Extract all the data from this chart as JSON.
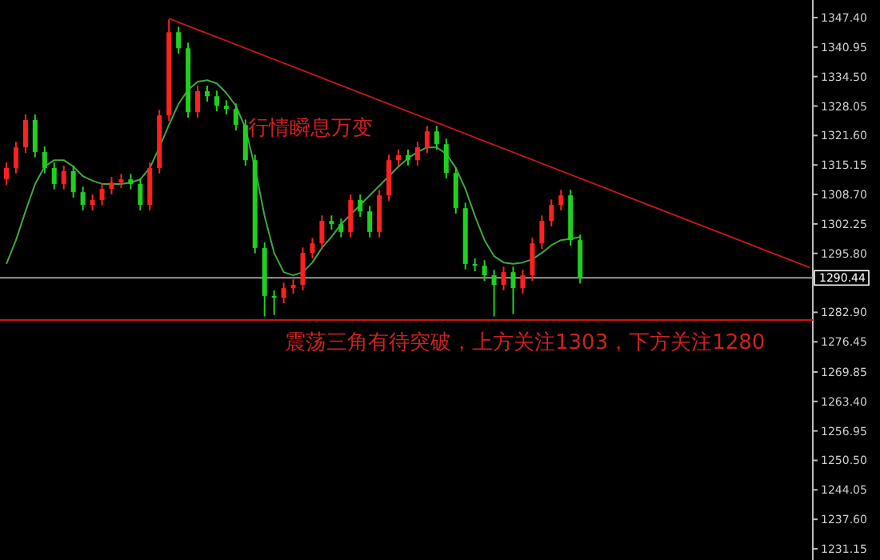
{
  "chart_data": {
    "type": "candlestick",
    "categories": [
      null,
      null,
      null,
      null,
      null,
      null,
      null,
      null,
      null,
      null,
      null,
      null,
      null,
      null,
      null,
      null,
      null,
      null,
      null,
      null,
      null,
      null,
      null,
      null,
      null,
      null,
      null,
      null,
      null,
      null,
      null,
      null,
      null,
      null,
      null,
      null,
      null,
      null,
      null,
      null,
      null,
      null,
      null,
      null,
      null,
      null,
      null,
      null,
      null,
      null,
      null,
      null,
      null,
      null,
      null,
      null,
      null,
      null,
      null,
      null,
      null,
      null,
      null,
      null,
      null,
      null,
      null,
      null,
      null,
      null,
      null,
      null,
      null,
      null,
      null,
      null,
      null,
      null,
      null,
      null,
      null,
      null,
      null,
      null,
      null
    ],
    "ohlc": [
      [
        1312.0,
        1315.7,
        1310.8,
        1314.5
      ],
      [
        1314.5,
        1320.2,
        1313.3,
        1319.0
      ],
      [
        1319.0,
        1326.2,
        1317.8,
        1325.0
      ],
      [
        1325.0,
        1326.2,
        1316.8,
        1318.0
      ],
      [
        1318.0,
        1319.2,
        1313.3,
        1314.5
      ],
      [
        1314.5,
        1315.7,
        1309.8,
        1311.0
      ],
      [
        1311.0,
        1315.0,
        1309.8,
        1313.8
      ],
      [
        1313.8,
        1315.0,
        1308.0,
        1309.2
      ],
      [
        1309.2,
        1310.4,
        1305.2,
        1306.4
      ],
      [
        1306.4,
        1308.7,
        1305.2,
        1307.5
      ],
      [
        1307.5,
        1311.1,
        1306.3,
        1309.9
      ],
      [
        1309.9,
        1312.5,
        1308.7,
        1311.3
      ],
      [
        1311.3,
        1313.2,
        1310.1,
        1312.0
      ],
      [
        1312.0,
        1313.2,
        1309.8,
        1311.0
      ],
      [
        1311.0,
        1312.2,
        1305.2,
        1306.4
      ],
      [
        1306.4,
        1315.7,
        1305.2,
        1314.5
      ],
      [
        1314.5,
        1327.2,
        1313.3,
        1326.0
      ],
      [
        1326.0,
        1347.0,
        1324.8,
        1344.2
      ],
      [
        1344.2,
        1345.4,
        1339.5,
        1340.7
      ],
      [
        1340.7,
        1341.9,
        1325.5,
        1326.7
      ],
      [
        1326.7,
        1332.5,
        1325.5,
        1331.3
      ],
      [
        1331.3,
        1332.5,
        1329.0,
        1330.2
      ],
      [
        1330.2,
        1331.4,
        1326.9,
        1328.1
      ],
      [
        1328.1,
        1329.3,
        1326.2,
        1327.4
      ],
      [
        1327.4,
        1328.6,
        1322.7,
        1323.9
      ],
      [
        1323.9,
        1325.1,
        1315.0,
        1316.2
      ],
      [
        1316.2,
        1317.4,
        1295.8,
        1297.0
      ],
      [
        1297.0,
        1298.2,
        1282.0,
        1286.5
      ],
      [
        1286.5,
        1287.7,
        1282.3,
        1286.1
      ],
      [
        1286.1,
        1289.4,
        1284.9,
        1288.2
      ],
      [
        1288.2,
        1290.1,
        1287.0,
        1288.9
      ],
      [
        1288.9,
        1297.1,
        1287.7,
        1295.9
      ],
      [
        1295.9,
        1299.2,
        1294.7,
        1298.0
      ],
      [
        1298.0,
        1304.1,
        1296.8,
        1302.9
      ],
      [
        1302.9,
        1304.1,
        1301.0,
        1302.2
      ],
      [
        1302.2,
        1303.4,
        1299.3,
        1300.5
      ],
      [
        1300.5,
        1308.7,
        1299.3,
        1307.5
      ],
      [
        1307.5,
        1308.7,
        1303.8,
        1305.0
      ],
      [
        1305.0,
        1306.2,
        1299.3,
        1300.5
      ],
      [
        1300.5,
        1309.7,
        1299.3,
        1308.5
      ],
      [
        1308.5,
        1317.4,
        1307.3,
        1316.2
      ],
      [
        1316.2,
        1318.5,
        1315.0,
        1317.3
      ],
      [
        1317.3,
        1318.5,
        1315.0,
        1316.2
      ],
      [
        1316.2,
        1320.2,
        1315.0,
        1319.0
      ],
      [
        1319.0,
        1323.7,
        1317.8,
        1322.5
      ],
      [
        1322.5,
        1323.7,
        1318.5,
        1319.7
      ],
      [
        1319.7,
        1320.9,
        1312.2,
        1313.4
      ],
      [
        1313.4,
        1314.6,
        1304.5,
        1305.7
      ],
      [
        1305.7,
        1306.9,
        1292.3,
        1293.5
      ],
      [
        1293.5,
        1294.7,
        1291.9,
        1293.1
      ],
      [
        1293.1,
        1294.3,
        1289.8,
        1291.0
      ],
      [
        1291.0,
        1292.2,
        1282.0,
        1288.9
      ],
      [
        1288.9,
        1292.9,
        1287.7,
        1291.7
      ],
      [
        1291.7,
        1292.9,
        1282.5,
        1288.2
      ],
      [
        1288.2,
        1292.2,
        1287.0,
        1291.0
      ],
      [
        1291.0,
        1299.2,
        1289.8,
        1298.0
      ],
      [
        1298.0,
        1304.1,
        1296.8,
        1302.9
      ],
      [
        1302.9,
        1307.6,
        1301.7,
        1306.4
      ],
      [
        1306.4,
        1309.7,
        1305.2,
        1308.5
      ],
      [
        1308.5,
        1309.7,
        1297.5,
        1298.7
      ],
      [
        1298.7,
        1299.9,
        1289.2,
        1290.4
      ],
      null,
      null,
      null,
      null,
      null,
      null,
      null,
      null,
      null,
      null,
      null,
      null,
      null,
      null,
      null,
      null,
      null,
      null,
      null,
      null,
      null,
      null,
      null,
      null
    ],
    "colors": [
      "#ff2020",
      "#ff2020",
      "#ff2020",
      "#20d020",
      "#20d020",
      "#20d020",
      "#ff2020",
      "#20d020",
      "#20d020",
      "#ff2020",
      "#ff2020",
      "#ff2020",
      "#ff2020",
      "#20d020",
      "#20d020",
      "#ff2020",
      "#ff2020",
      "#ff2020",
      "#20d020",
      "#20d020",
      "#ff2020",
      "#20d020",
      "#20d020",
      "#20d020",
      "#20d020",
      "#20d020",
      "#20d020",
      "#20d020",
      "#20d020",
      "#ff2020",
      "#ff2020",
      "#ff2020",
      "#ff2020",
      "#ff2020",
      "#20d020",
      "#20d020",
      "#ff2020",
      "#20d020",
      "#20d020",
      "#ff2020",
      "#ff2020",
      "#ff2020",
      "#20d020",
      "#ff2020",
      "#ff2020",
      "#20d020",
      "#20d020",
      "#20d020",
      "#20d020",
      "#20d020",
      "#20d020",
      "#20d020",
      "#ff2020",
      "#20d020",
      "#ff2020",
      "#ff2020",
      "#ff2020",
      "#ff2020",
      "#ff2020",
      "#20d020",
      "#20d020",
      null,
      null,
      null,
      null,
      null,
      null,
      null,
      null,
      null,
      null,
      null,
      null,
      null,
      null,
      null,
      null,
      null,
      null,
      null,
      null,
      null,
      null,
      null,
      null
    ],
    "series": [
      {
        "type": "line",
        "color": "#3fa83f",
        "values": [
          1293.5,
          1298.7,
          1305.0,
          1311.0,
          1314.8,
          1316.2,
          1316.2,
          1314.8,
          1312.7,
          1311.7,
          1311.0,
          1311.0,
          1311.0,
          1311.3,
          1312.0,
          1314.5,
          1319.0,
          1323.9,
          1328.5,
          1331.6,
          1333.4,
          1333.7,
          1333.0,
          1330.9,
          1328.1,
          1323.2,
          1314.5,
          1304.0,
          1295.9,
          1291.7,
          1291.0,
          1291.7,
          1293.8,
          1297.0,
          1299.4,
          1302.2,
          1304.3,
          1306.4,
          1308.5,
          1310.6,
          1312.7,
          1314.8,
          1316.6,
          1318.0,
          1319.0,
          1319.0,
          1317.6,
          1314.5,
          1309.9,
          1304.0,
          1298.7,
          1295.2,
          1293.8,
          1293.5,
          1293.8,
          1294.5,
          1295.9,
          1297.6,
          1298.7,
          1299.0,
          1299.4,
          null,
          null,
          null,
          null,
          null,
          null,
          null,
          null,
          null,
          null,
          null,
          null,
          null,
          null,
          null,
          null,
          null,
          null,
          null,
          null,
          null,
          null,
          null,
          null
        ]
      },
      {
        "type": "line",
        "color": "#c01818",
        "values": [
          null,
          null,
          null,
          null,
          null,
          null,
          null,
          null,
          null,
          null,
          null,
          null,
          null,
          null,
          null,
          null,
          null,
          1347.2,
          null,
          null,
          null,
          null,
          null,
          null,
          null,
          null,
          null,
          null,
          null,
          null,
          null,
          null,
          null,
          null,
          null,
          null,
          null,
          null,
          null,
          null,
          null,
          null,
          null,
          null,
          null,
          null,
          null,
          null,
          null,
          null,
          null,
          null,
          null,
          null,
          null,
          null,
          null,
          null,
          null,
          null,
          null,
          null,
          null,
          null,
          null,
          null,
          null,
          null,
          null,
          null,
          null,
          null,
          null,
          null,
          null,
          null,
          null,
          null,
          null,
          null,
          null,
          null,
          null,
          null,
          1292.7
        ]
      }
    ],
    "ylim": [
      1228.7,
      1351.25
    ],
    "yticks": [
      {
        "value": 1347.4,
        "label": "1347.40"
      },
      {
        "value": 1340.95,
        "label": "1340.95"
      },
      {
        "value": 1334.5,
        "label": "1334.50"
      },
      {
        "value": 1328.05,
        "label": "1328.05"
      },
      {
        "value": 1321.6,
        "label": "1321.60"
      },
      {
        "value": 1315.15,
        "label": "1315.15"
      },
      {
        "value": 1308.7,
        "label": "1308.70"
      },
      {
        "value": 1302.25,
        "label": "1302.25"
      },
      {
        "value": 1295.8,
        "label": "1295.80"
      },
      {
        "value": 1282.9,
        "label": "1282.90"
      },
      {
        "value": 1276.45,
        "label": "1276.45"
      },
      {
        "value": 1269.85,
        "label": "1269.85"
      },
      {
        "value": 1263.4,
        "label": "1263.40"
      },
      {
        "value": 1256.95,
        "label": "1256.95"
      },
      {
        "value": 1250.5,
        "label": "1250.50"
      },
      {
        "value": 1244.05,
        "label": "1244.05"
      },
      {
        "value": 1237.6,
        "label": "1237.60"
      },
      {
        "value": 1231.15,
        "label": "1231.15"
      }
    ],
    "tick_labels": "y",
    "ref_lines": [
      {
        "axis": "y",
        "value": 1290.44,
        "label": "1290.44",
        "color": "#9a9a9a"
      },
      {
        "axis": "y",
        "value": 1281.2,
        "color": "#d01010"
      }
    ],
    "annotations": [
      "行情瞬息万变",
      "震荡三角有待突破，上方关注1303，下方关注1280"
    ]
  }
}
